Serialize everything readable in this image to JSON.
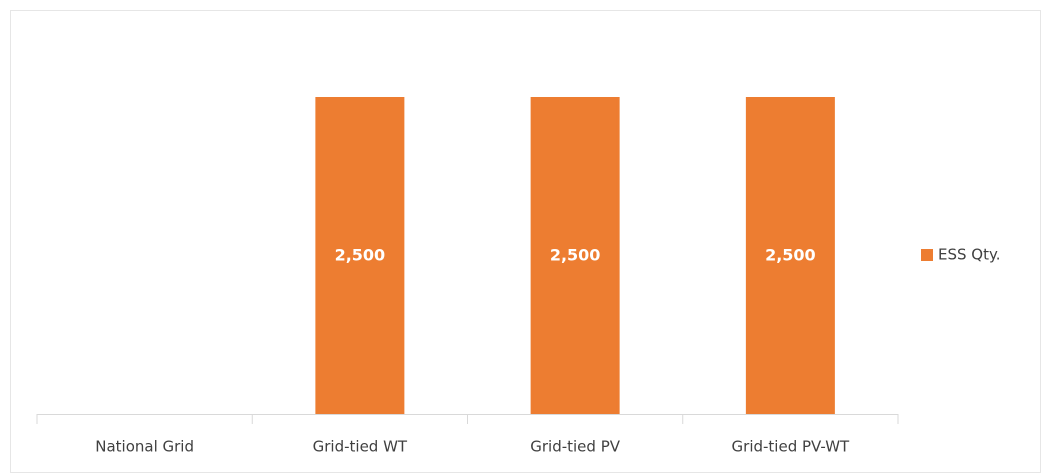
{
  "chart_data": {
    "type": "bar",
    "categories": [
      "National Grid",
      "Grid-tied WT",
      "Grid-tied PV",
      "Grid-tied PV-WT"
    ],
    "series": [
      {
        "name": "ESS Qty.",
        "color": "#ed7d31",
        "values": [
          0,
          2500,
          2500,
          2500
        ],
        "value_labels": [
          "-",
          "2,500",
          "2,500",
          "2,500"
        ]
      }
    ],
    "legend": "right",
    "grid": false
  }
}
